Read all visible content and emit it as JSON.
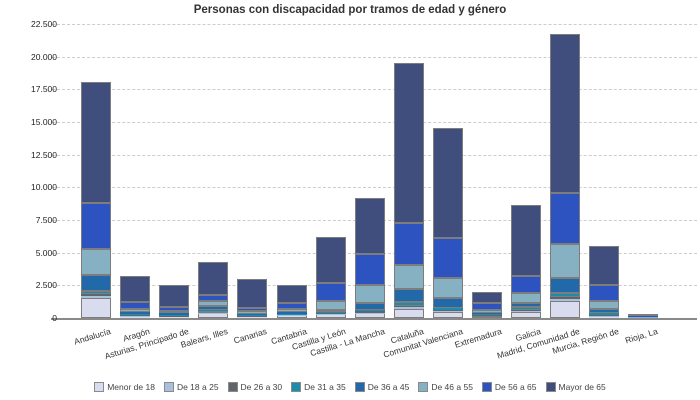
{
  "title": "Personas con discapacidad por tramos de edad y género",
  "y_axis": {
    "tick_labels": [
      "0",
      "2.500",
      "5.000",
      "7.500",
      "10.000",
      "12.500",
      "15.000",
      "17.500",
      "20.000",
      "22.500"
    ],
    "tick_values": [
      0,
      2500,
      5000,
      7500,
      10000,
      12500,
      15000,
      17500,
      20000,
      22500
    ]
  },
  "chart_data": {
    "type": "bar",
    "stacked": true,
    "title": "Personas con discapacidad por tramos de edad y género",
    "xlabel": "",
    "ylabel": "",
    "ylim": [
      0,
      22500
    ],
    "grid": true,
    "legend_position": "bottom",
    "categories": [
      "Andalucía",
      "Aragón",
      "Asturias, Principado de",
      "Balears, Illes",
      "Canarias",
      "Cantabria",
      "Castilla y León",
      "Castilla - La Mancha",
      "Cataluña",
      "Comunitat Valenciana",
      "Extremadura",
      "Galicia",
      "Madrid, Comunidad de",
      "Murcia, Región de",
      "Rioja, La"
    ],
    "series": [
      {
        "name": "Menor de 18",
        "color": "#d9dcee",
        "values": [
          1550,
          150,
          120,
          350,
          90,
          230,
          300,
          360,
          670,
          480,
          180,
          480,
          1320,
          150,
          20
        ]
      },
      {
        "name": "De 18 a 25",
        "color": "#a9c0de",
        "values": [
          150,
          30,
          25,
          30,
          20,
          20,
          30,
          40,
          150,
          80,
          20,
          70,
          150,
          30,
          5
        ]
      },
      {
        "name": "De 26 a 30",
        "color": "#61656a",
        "values": [
          150,
          40,
          35,
          180,
          60,
          30,
          40,
          130,
          120,
          80,
          40,
          100,
          150,
          80,
          5
        ]
      },
      {
        "name": "De 31 a 35",
        "color": "#1d8cac",
        "values": [
          230,
          60,
          50,
          60,
          50,
          40,
          60,
          80,
          310,
          150,
          40,
          170,
          260,
          100,
          10
        ]
      },
      {
        "name": "De 36 a 45",
        "color": "#2269a9",
        "values": [
          1180,
          150,
          120,
          280,
          120,
          120,
          180,
          510,
          950,
          720,
          80,
          310,
          1220,
          310,
          20
        ]
      },
      {
        "name": "De 46 a 55",
        "color": "#86b1c2",
        "values": [
          2010,
          280,
          200,
          380,
          170,
          230,
          690,
          1400,
          1860,
          1580,
          250,
          770,
          2530,
          660,
          30
        ]
      },
      {
        "name": "De 56 a 65",
        "color": "#2d53c0",
        "values": [
          3570,
          490,
          280,
          510,
          230,
          460,
          1360,
          2350,
          3240,
          3020,
          515,
          1350,
          3950,
          1200,
          40
        ]
      },
      {
        "name": "Mayor de 65",
        "color": "#3f4e7d",
        "values": [
          9250,
          2000,
          1670,
          2510,
          2260,
          1370,
          3540,
          4330,
          12200,
          8470,
          875,
          5410,
          12120,
          2980,
          170
        ]
      }
    ]
  }
}
